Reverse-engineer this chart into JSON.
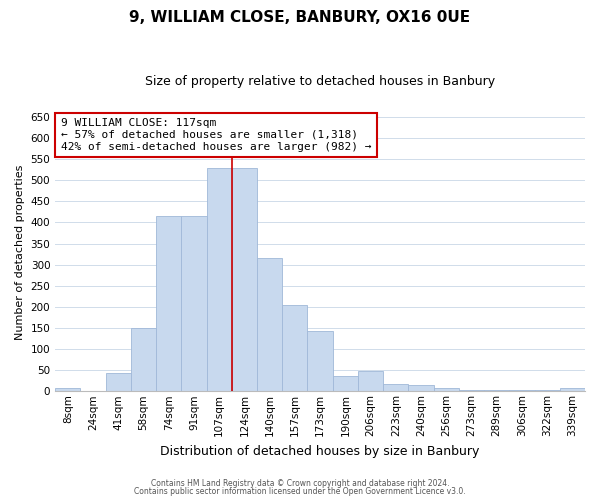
{
  "title": "9, WILLIAM CLOSE, BANBURY, OX16 0UE",
  "subtitle": "Size of property relative to detached houses in Banbury",
  "xlabel": "Distribution of detached houses by size in Banbury",
  "ylabel": "Number of detached properties",
  "bin_labels": [
    "8sqm",
    "24sqm",
    "41sqm",
    "58sqm",
    "74sqm",
    "91sqm",
    "107sqm",
    "124sqm",
    "140sqm",
    "157sqm",
    "173sqm",
    "190sqm",
    "206sqm",
    "223sqm",
    "240sqm",
    "256sqm",
    "273sqm",
    "289sqm",
    "306sqm",
    "322sqm",
    "339sqm"
  ],
  "bar_values": [
    8,
    0,
    43,
    150,
    415,
    415,
    530,
    530,
    315,
    205,
    143,
    35,
    49,
    18,
    14,
    8,
    2,
    2,
    2,
    2,
    8
  ],
  "bar_color": "#c8d9ee",
  "bar_edge_color": "#a0b8d8",
  "vline_pos": 7,
  "vline_color": "#cc0000",
  "annotation_title": "9 WILLIAM CLOSE: 117sqm",
  "annotation_line1": "← 57% of detached houses are smaller (1,318)",
  "annotation_line2": "42% of semi-detached houses are larger (982) →",
  "annotation_box_color": "#cc0000",
  "ylim": [
    0,
    660
  ],
  "yticks": [
    0,
    50,
    100,
    150,
    200,
    250,
    300,
    350,
    400,
    450,
    500,
    550,
    600,
    650
  ],
  "footer1": "Contains HM Land Registry data © Crown copyright and database right 2024.",
  "footer2": "Contains public sector information licensed under the Open Government Licence v3.0.",
  "bg_color": "#ffffff",
  "grid_color": "#d0dcea",
  "title_fontsize": 11,
  "subtitle_fontsize": 9,
  "ylabel_fontsize": 8,
  "xlabel_fontsize": 9,
  "tick_fontsize": 7.5,
  "ann_fontsize": 8
}
